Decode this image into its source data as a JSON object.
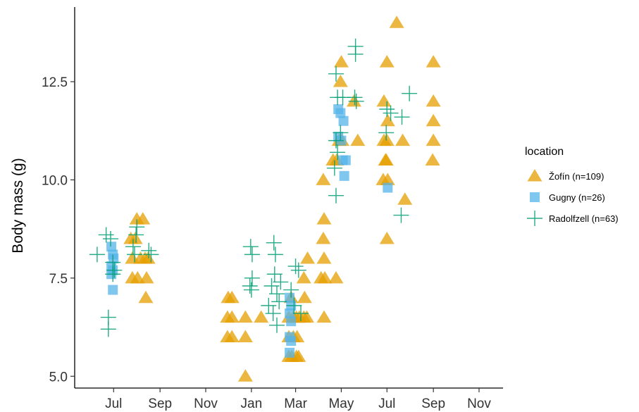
{
  "chart_data": {
    "type": "scatter",
    "title": "",
    "xlabel": "",
    "ylabel": "Body mass (g)",
    "ylim": [
      4.7,
      14.4
    ],
    "xlim": [
      "2017-05-10",
      "2018-12-03"
    ],
    "grid": false,
    "legend": {
      "title": "location",
      "placement": "right"
    },
    "x_ticks": [
      {
        "date": "2017-07-01",
        "label": "Jul"
      },
      {
        "date": "2017-09-01",
        "label": "Sep"
      },
      {
        "date": "2017-11-01",
        "label": "Nov"
      },
      {
        "date": "2018-01-01",
        "label": "Jan"
      },
      {
        "date": "2018-03-01",
        "label": "Mar"
      },
      {
        "date": "2018-05-01",
        "label": "May"
      },
      {
        "date": "2018-07-01",
        "label": "Jul"
      },
      {
        "date": "2018-09-01",
        "label": "Sep"
      },
      {
        "date": "2018-11-01",
        "label": "Nov"
      }
    ],
    "y_ticks": [
      {
        "value": 5.0,
        "label": "5.0"
      },
      {
        "value": 7.5,
        "label": "7.5"
      },
      {
        "value": 10.0,
        "label": "10.0"
      },
      {
        "value": 12.5,
        "label": "12.5"
      }
    ],
    "series": [
      {
        "name": "Žofín (n=109)",
        "marker": "triangle",
        "color": "#E69F00",
        "points": [
          [
            "2017-08-01",
            9.0
          ],
          [
            "2017-08-09",
            9.0
          ],
          [
            "2017-07-24",
            8.5
          ],
          [
            "2017-07-30",
            8.5
          ],
          [
            "2017-07-26",
            8.0
          ],
          [
            "2017-08-06",
            8.0
          ],
          [
            "2017-08-12",
            8.0
          ],
          [
            "2017-08-16",
            8.0
          ],
          [
            "2017-07-26",
            7.5
          ],
          [
            "2017-08-02",
            7.5
          ],
          [
            "2017-08-14",
            7.5
          ],
          [
            "2017-08-13",
            7.0
          ],
          [
            "2017-12-01",
            7.0
          ],
          [
            "2017-12-06",
            7.0
          ],
          [
            "2017-11-30",
            6.5
          ],
          [
            "2017-12-06",
            6.5
          ],
          [
            "2017-12-24",
            6.5
          ],
          [
            "2017-11-30",
            6.0
          ],
          [
            "2017-12-06",
            6.0
          ],
          [
            "2017-12-24",
            6.0
          ],
          [
            "2017-12-24",
            5.0
          ],
          [
            "2018-01-14",
            6.5
          ],
          [
            "2018-02-23",
            7.0
          ],
          [
            "2018-02-20",
            6.5
          ],
          [
            "2018-02-26",
            6.5
          ],
          [
            "2018-03-02",
            6.5
          ],
          [
            "2018-03-06",
            6.5
          ],
          [
            "2018-03-12",
            6.5
          ],
          [
            "2018-03-16",
            6.5
          ],
          [
            "2018-02-20",
            6.0
          ],
          [
            "2018-02-26",
            6.0
          ],
          [
            "2018-03-03",
            6.0
          ],
          [
            "2018-02-20",
            5.5
          ],
          [
            "2018-02-24",
            5.5
          ],
          [
            "2018-03-02",
            5.5
          ],
          [
            "2018-03-05",
            5.5
          ],
          [
            "2018-03-17",
            8.0
          ],
          [
            "2018-04-08",
            8.0
          ],
          [
            "2018-03-12",
            7.5
          ],
          [
            "2018-04-04",
            7.5
          ],
          [
            "2018-04-09",
            7.5
          ],
          [
            "2018-04-24",
            7.5
          ],
          [
            "2018-03-13",
            7.0
          ],
          [
            "2018-04-08",
            6.5
          ],
          [
            "2018-04-07",
            10.0
          ],
          [
            "2018-04-08",
            9.0
          ],
          [
            "2018-04-07",
            8.5
          ],
          [
            "2018-04-20",
            10.5
          ],
          [
            "2018-04-25",
            10.5
          ],
          [
            "2018-04-28",
            11.0
          ],
          [
            "2018-05-02",
            11.0
          ],
          [
            "2018-04-30",
            12.5
          ],
          [
            "2018-05-01",
            13.0
          ],
          [
            "2018-05-18",
            12.0
          ],
          [
            "2018-05-23",
            11.0
          ],
          [
            "2018-06-27",
            12.0
          ],
          [
            "2018-07-01",
            13.0
          ],
          [
            "2018-06-27",
            11.0
          ],
          [
            "2018-07-01",
            11.0
          ],
          [
            "2018-06-29",
            10.5
          ],
          [
            "2018-06-30",
            10.5
          ],
          [
            "2018-06-26",
            10.0
          ],
          [
            "2018-07-02",
            10.0
          ],
          [
            "2018-07-02",
            11.5
          ],
          [
            "2018-07-14",
            14.0
          ],
          [
            "2018-07-22",
            11.0
          ],
          [
            "2018-07-25",
            9.5
          ],
          [
            "2018-07-01",
            8.5
          ],
          [
            "2018-09-01",
            13.0
          ],
          [
            "2018-09-01",
            12.0
          ],
          [
            "2018-09-01",
            11.5
          ],
          [
            "2018-09-01",
            11.0
          ],
          [
            "2018-08-31",
            10.5
          ]
        ]
      },
      {
        "name": "Gugny (n=26)",
        "marker": "square",
        "color": "#56B4E9",
        "points": [
          [
            "2017-06-28",
            8.3
          ],
          [
            "2017-06-30",
            8.1
          ],
          [
            "2017-07-01",
            8.0
          ],
          [
            "2017-06-28",
            7.8
          ],
          [
            "2017-06-30",
            7.7
          ],
          [
            "2017-06-28",
            7.6
          ],
          [
            "2017-06-30",
            7.2
          ],
          [
            "2018-02-21",
            7.0
          ],
          [
            "2018-02-23",
            6.8
          ],
          [
            "2018-02-21",
            6.6
          ],
          [
            "2018-02-23",
            6.4
          ],
          [
            "2018-02-21",
            6.0
          ],
          [
            "2018-02-23",
            5.9
          ],
          [
            "2018-02-21",
            5.6
          ],
          [
            "2018-04-27",
            11.8
          ],
          [
            "2018-04-30",
            11.7
          ],
          [
            "2018-05-04",
            11.5
          ],
          [
            "2018-04-27",
            11.1
          ],
          [
            "2018-05-01",
            11.0
          ],
          [
            "2018-05-03",
            10.5
          ],
          [
            "2018-05-07",
            10.5
          ],
          [
            "2018-05-05",
            10.1
          ],
          [
            "2018-07-02",
            9.8
          ]
        ]
      },
      {
        "name": "Radolfzell (n=63)",
        "marker": "plus",
        "color": "#009E73",
        "points": [
          [
            "2017-06-21",
            8.6
          ],
          [
            "2017-06-27",
            8.5
          ],
          [
            "2017-06-09",
            8.1
          ],
          [
            "2017-06-30",
            7.9
          ],
          [
            "2017-07-02",
            7.7
          ],
          [
            "2017-06-30",
            7.6
          ],
          [
            "2017-06-24",
            6.5
          ],
          [
            "2017-06-24",
            6.2
          ],
          [
            "2017-08-01",
            8.8
          ],
          [
            "2017-07-31",
            8.6
          ],
          [
            "2017-07-27",
            8.3
          ],
          [
            "2017-07-29",
            8.1
          ],
          [
            "2017-08-17",
            8.2
          ],
          [
            "2017-08-20",
            8.1
          ],
          [
            "2017-12-31",
            8.3
          ],
          [
            "2018-01-02",
            8.1
          ],
          [
            "2018-01-02",
            7.5
          ],
          [
            "2017-12-30",
            7.3
          ],
          [
            "2018-01-01",
            7.2
          ],
          [
            "2018-01-31",
            8.4
          ],
          [
            "2018-02-02",
            8.1
          ],
          [
            "2018-02-01",
            7.6
          ],
          [
            "2018-01-28",
            7.3
          ],
          [
            "2018-02-04",
            7.1
          ],
          [
            "2018-02-07",
            6.9
          ],
          [
            "2018-01-24",
            6.8
          ],
          [
            "2018-01-30",
            6.6
          ],
          [
            "2018-02-04",
            6.3
          ],
          [
            "2018-02-09",
            7.4
          ],
          [
            "2018-03-01",
            7.8
          ],
          [
            "2018-03-05",
            7.7
          ],
          [
            "2018-02-23",
            7.2
          ],
          [
            "2018-02-27",
            6.8
          ],
          [
            "2018-03-08",
            6.6
          ],
          [
            "2018-04-24",
            12.7
          ],
          [
            "2018-04-26",
            12.1
          ],
          [
            "2018-05-03",
            12.1
          ],
          [
            "2018-04-30",
            11.2
          ],
          [
            "2018-04-24",
            11.0
          ],
          [
            "2018-04-26",
            10.7
          ],
          [
            "2018-04-22",
            10.3
          ],
          [
            "2018-04-24",
            9.6
          ],
          [
            "2018-05-20",
            13.4
          ],
          [
            "2018-05-20",
            13.2
          ],
          [
            "2018-05-19",
            12.1
          ],
          [
            "2018-05-21",
            12.0
          ],
          [
            "2018-07-01",
            11.8
          ],
          [
            "2018-06-30",
            11.2
          ],
          [
            "2018-07-06",
            11.7
          ],
          [
            "2018-07-21",
            11.6
          ],
          [
            "2018-07-31",
            12.2
          ],
          [
            "2018-07-20",
            9.1
          ]
        ]
      }
    ]
  }
}
